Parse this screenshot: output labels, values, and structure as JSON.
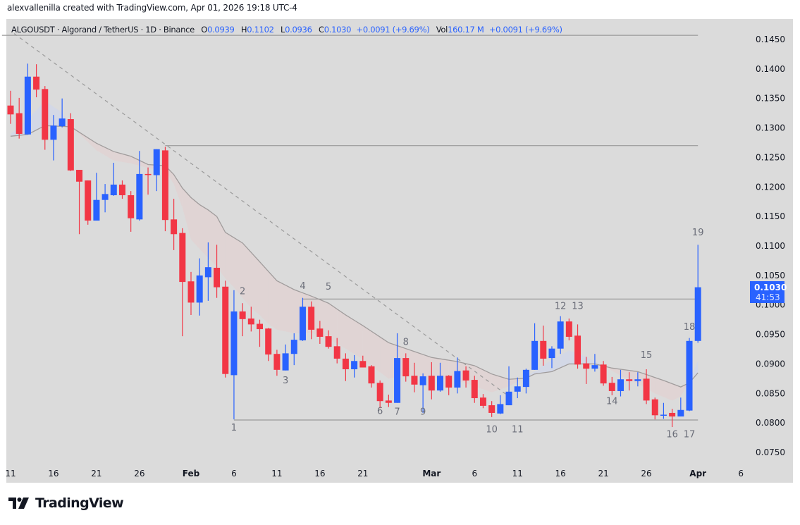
{
  "header": {
    "credit": "alexvallenilla created with TradingView.com, Apr 01, 2026 19:18 UTC-4"
  },
  "legend": {
    "symbol": "ALGOUSDT · Algorand / TetherUS · 1D · Binance",
    "open_label": "O",
    "open": "0.0939",
    "high_label": "H",
    "high": "0.1102",
    "low_label": "L",
    "low": "0.0936",
    "close_label": "C",
    "close": "0.1030",
    "change": "+0.0091 (+9.69%)",
    "vol_label": "Vol",
    "vol": "160.17 M",
    "vol_change": "+0.0091 (+9.69%)"
  },
  "price_tag": {
    "price": "0.1030",
    "countdown": "41:53",
    "color": "#2962ff"
  },
  "footer": {
    "logo": "TradingView"
  },
  "colors": {
    "up": "#2962ff",
    "down": "#f23645",
    "background": "#dbdbdb",
    "ma_line": "#a09c9c",
    "band_bear": "#e0d4d4",
    "band_bull": "#d3d8e6"
  },
  "chart_data": {
    "type": "candlestick",
    "title": "ALGOUSDT · Algorand / TetherUS · 1D · Binance",
    "ylim": [
      0.0725,
      0.1465
    ],
    "y_ticks": [
      "0.1450",
      "0.1400",
      "0.1350",
      "0.1300",
      "0.1250",
      "0.1200",
      "0.1150",
      "0.1100",
      "0.1050",
      "0.1000",
      "0.0950",
      "0.0900",
      "0.0850",
      "0.0800",
      "0.0750"
    ],
    "x_ticks": [
      {
        "label": "11",
        "date": "2026-01-11"
      },
      {
        "label": "16",
        "date": "2026-01-16"
      },
      {
        "label": "21",
        "date": "2026-01-21"
      },
      {
        "label": "26",
        "date": "2026-01-26"
      },
      {
        "label": "Feb",
        "date": "2026-02-01",
        "month": true
      },
      {
        "label": "6",
        "date": "2026-02-06"
      },
      {
        "label": "11",
        "date": "2026-02-11"
      },
      {
        "label": "16",
        "date": "2026-02-16"
      },
      {
        "label": "21",
        "date": "2026-02-21"
      },
      {
        "label": "Mar",
        "date": "2026-03-01",
        "month": true
      },
      {
        "label": "6",
        "date": "2026-03-06"
      },
      {
        "label": "11",
        "date": "2026-03-11"
      },
      {
        "label": "16",
        "date": "2026-03-16"
      },
      {
        "label": "21",
        "date": "2026-03-21"
      },
      {
        "label": "26",
        "date": "2026-03-26"
      },
      {
        "label": "Apr",
        "date": "2026-04-01",
        "month": true
      },
      {
        "label": "6",
        "date": "2026-04-06"
      }
    ],
    "columns": [
      "date",
      "open",
      "high",
      "low",
      "close"
    ],
    "candles": [
      [
        "2026-01-11",
        0.1338,
        0.1363,
        0.1307,
        0.1323
      ],
      [
        "2026-01-12",
        0.1325,
        0.1351,
        0.1282,
        0.129
      ],
      [
        "2026-01-13",
        0.1289,
        0.1409,
        0.1289,
        0.1387
      ],
      [
        "2026-01-14",
        0.1387,
        0.1408,
        0.1352,
        0.1365
      ],
      [
        "2026-01-15",
        0.1366,
        0.1371,
        0.1263,
        0.128
      ],
      [
        "2026-01-16",
        0.128,
        0.1322,
        0.1245,
        0.1304
      ],
      [
        "2026-01-17",
        0.1303,
        0.135,
        0.1301,
        0.1316
      ],
      [
        "2026-01-18",
        0.1315,
        0.1325,
        0.1227,
        0.1228
      ],
      [
        "2026-01-19",
        0.1229,
        0.1229,
        0.112,
        0.1209
      ],
      [
        "2026-01-20",
        0.1211,
        0.1211,
        0.1136,
        0.1143
      ],
      [
        "2026-01-21",
        0.1143,
        0.1224,
        0.1143,
        0.1178
      ],
      [
        "2026-01-22",
        0.1178,
        0.1205,
        0.1157,
        0.1188
      ],
      [
        "2026-01-23",
        0.1186,
        0.1241,
        0.1185,
        0.1204
      ],
      [
        "2026-01-24",
        0.1204,
        0.1211,
        0.118,
        0.1186
      ],
      [
        "2026-01-25",
        0.1186,
        0.1193,
        0.1124,
        0.1147
      ],
      [
        "2026-01-26",
        0.1145,
        0.1261,
        0.1143,
        0.1222
      ],
      [
        "2026-01-27",
        0.1222,
        0.1233,
        0.1187,
        0.1221
      ],
      [
        "2026-01-28",
        0.122,
        0.1264,
        0.1193,
        0.1264
      ],
      [
        "2026-01-29",
        0.1262,
        0.1268,
        0.1125,
        0.1144
      ],
      [
        "2026-01-30",
        0.1145,
        0.118,
        0.1093,
        0.112
      ],
      [
        "2026-01-31",
        0.1122,
        0.113,
        0.0947,
        0.1039
      ],
      [
        "2026-02-01",
        0.104,
        0.1056,
        0.0983,
        0.1004
      ],
      [
        "2026-02-02",
        0.1004,
        0.1079,
        0.0982,
        0.105
      ],
      [
        "2026-02-03",
        0.1047,
        0.1106,
        0.1007,
        0.1064
      ],
      [
        "2026-02-04",
        0.1063,
        0.1102,
        0.1012,
        0.103
      ],
      [
        "2026-02-05",
        0.1031,
        0.1041,
        0.0877,
        0.0883
      ],
      [
        "2026-02-06",
        0.0881,
        0.1025,
        0.0806,
        0.0989
      ],
      [
        "2026-02-07",
        0.0989,
        0.1003,
        0.0947,
        0.0976
      ],
      [
        "2026-02-08",
        0.0977,
        0.0997,
        0.0955,
        0.0967
      ],
      [
        "2026-02-09",
        0.0968,
        0.0975,
        0.0929,
        0.0959
      ],
      [
        "2026-02-10",
        0.096,
        0.0961,
        0.0905,
        0.0916
      ],
      [
        "2026-02-11",
        0.0917,
        0.0924,
        0.088,
        0.089
      ],
      [
        "2026-02-12",
        0.0889,
        0.0933,
        0.0889,
        0.0918
      ],
      [
        "2026-02-13",
        0.0917,
        0.0952,
        0.0898,
        0.0941
      ],
      [
        "2026-02-14",
        0.094,
        0.1012,
        0.0939,
        0.0997
      ],
      [
        "2026-02-15",
        0.0997,
        0.1006,
        0.0942,
        0.0958
      ],
      [
        "2026-02-16",
        0.096,
        0.0973,
        0.0934,
        0.0946
      ],
      [
        "2026-02-17",
        0.0947,
        0.0957,
        0.0926,
        0.0929
      ],
      [
        "2026-02-18",
        0.093,
        0.0944,
        0.0901,
        0.0909
      ],
      [
        "2026-02-19",
        0.0909,
        0.0918,
        0.0871,
        0.0891
      ],
      [
        "2026-02-20",
        0.0891,
        0.0915,
        0.0877,
        0.0905
      ],
      [
        "2026-02-21",
        0.0905,
        0.0914,
        0.0894,
        0.0894
      ],
      [
        "2026-02-22",
        0.0896,
        0.0898,
        0.086,
        0.0867
      ],
      [
        "2026-02-23",
        0.0868,
        0.0872,
        0.0825,
        0.0837
      ],
      [
        "2026-02-24",
        0.0838,
        0.0848,
        0.0827,
        0.0834
      ],
      [
        "2026-02-25",
        0.0834,
        0.0952,
        0.0834,
        0.091
      ],
      [
        "2026-02-26",
        0.091,
        0.0918,
        0.087,
        0.0879
      ],
      [
        "2026-02-27",
        0.088,
        0.0902,
        0.0852,
        0.0865
      ],
      [
        "2026-02-28",
        0.0864,
        0.0884,
        0.0817,
        0.0879
      ],
      [
        "2026-03-01",
        0.088,
        0.0903,
        0.084,
        0.0855
      ],
      [
        "2026-03-02",
        0.0855,
        0.0902,
        0.0853,
        0.088
      ],
      [
        "2026-03-03",
        0.088,
        0.0881,
        0.0847,
        0.086
      ],
      [
        "2026-03-04",
        0.086,
        0.0911,
        0.085,
        0.0888
      ],
      [
        "2026-03-05",
        0.0889,
        0.0896,
        0.086,
        0.0872
      ],
      [
        "2026-03-06",
        0.0873,
        0.088,
        0.0834,
        0.0842
      ],
      [
        "2026-03-07",
        0.0843,
        0.0849,
        0.0825,
        0.0829
      ],
      [
        "2026-03-08",
        0.083,
        0.0837,
        0.081,
        0.0817
      ],
      [
        "2026-03-09",
        0.0816,
        0.0847,
        0.0815,
        0.0832
      ],
      [
        "2026-03-10",
        0.083,
        0.0896,
        0.083,
        0.0853
      ],
      [
        "2026-03-11",
        0.0853,
        0.0877,
        0.0842,
        0.0862
      ],
      [
        "2026-03-12",
        0.0861,
        0.0892,
        0.085,
        0.089
      ],
      [
        "2026-03-13",
        0.089,
        0.0969,
        0.089,
        0.0939
      ],
      [
        "2026-03-14",
        0.0939,
        0.0965,
        0.0897,
        0.0909
      ],
      [
        "2026-03-15",
        0.091,
        0.093,
        0.0893,
        0.0926
      ],
      [
        "2026-03-16",
        0.0926,
        0.0981,
        0.0917,
        0.0972
      ],
      [
        "2026-03-17",
        0.0972,
        0.0977,
        0.094,
        0.0946
      ],
      [
        "2026-03-18",
        0.0948,
        0.0967,
        0.0892,
        0.0899
      ],
      [
        "2026-03-19",
        0.0901,
        0.0912,
        0.0866,
        0.0892
      ],
      [
        "2026-03-20",
        0.0892,
        0.0917,
        0.0887,
        0.0898
      ],
      [
        "2026-03-21",
        0.0899,
        0.0905,
        0.0863,
        0.0867
      ],
      [
        "2026-03-22",
        0.0868,
        0.0878,
        0.0847,
        0.0854
      ],
      [
        "2026-03-23",
        0.0854,
        0.089,
        0.0845,
        0.0874
      ],
      [
        "2026-03-24",
        0.0874,
        0.0886,
        0.0855,
        0.0871
      ],
      [
        "2026-03-25",
        0.0871,
        0.0886,
        0.0862,
        0.0874
      ],
      [
        "2026-03-26",
        0.0875,
        0.0891,
        0.0832,
        0.0838
      ],
      [
        "2026-03-27",
        0.084,
        0.0843,
        0.0806,
        0.0813
      ],
      [
        "2026-03-28",
        0.0813,
        0.0834,
        0.0807,
        0.0814
      ],
      [
        "2026-03-29",
        0.0817,
        0.0824,
        0.0793,
        0.0811
      ],
      [
        "2026-03-30",
        0.0811,
        0.0843,
        0.0811,
        0.0822
      ],
      [
        "2026-03-31",
        0.0821,
        0.0944,
        0.082,
        0.0939
      ],
      [
        "2026-04-01",
        0.0939,
        0.1102,
        0.0936,
        0.103
      ]
    ],
    "moving_average": [
      [
        "2026-01-11",
        0.1286
      ],
      [
        "2026-01-13",
        0.1289
      ],
      [
        "2026-01-15",
        0.1304
      ],
      [
        "2026-01-18",
        0.1302
      ],
      [
        "2026-01-21",
        0.1274
      ],
      [
        "2026-01-23",
        0.126
      ],
      [
        "2026-01-25",
        0.1252
      ],
      [
        "2026-01-27",
        0.1238
      ],
      [
        "2026-01-29",
        0.1236
      ],
      [
        "2026-01-30",
        0.1221
      ],
      [
        "2026-01-31",
        0.1198
      ],
      [
        "2026-02-01",
        0.1182
      ],
      [
        "2026-02-02",
        0.117
      ],
      [
        "2026-02-03",
        0.1161
      ],
      [
        "2026-02-04",
        0.115
      ],
      [
        "2026-02-05",
        0.1123
      ],
      [
        "2026-02-07",
        0.1105
      ],
      [
        "2026-02-09",
        0.1073
      ],
      [
        "2026-02-11",
        0.1041
      ],
      [
        "2026-02-13",
        0.1026
      ],
      [
        "2026-02-15",
        0.1015
      ],
      [
        "2026-02-17",
        0.1003
      ],
      [
        "2026-02-19",
        0.0983
      ],
      [
        "2026-02-21",
        0.0965
      ],
      [
        "2026-02-24",
        0.0936
      ],
      [
        "2026-02-27",
        0.0921
      ],
      [
        "2026-03-01",
        0.0911
      ],
      [
        "2026-03-04",
        0.0904
      ],
      [
        "2026-03-06",
        0.0897
      ],
      [
        "2026-03-08",
        0.0883
      ],
      [
        "2026-03-10",
        0.0874
      ],
      [
        "2026-03-12",
        0.0876
      ],
      [
        "2026-03-13",
        0.0883
      ],
      [
        "2026-03-15",
        0.0887
      ],
      [
        "2026-03-17",
        0.09
      ],
      [
        "2026-03-20",
        0.09
      ],
      [
        "2026-03-22",
        0.0893
      ],
      [
        "2026-03-25",
        0.0887
      ],
      [
        "2026-03-28",
        0.0872
      ],
      [
        "2026-03-30",
        0.0861
      ],
      [
        "2026-03-31",
        0.0868
      ],
      [
        "2026-04-01",
        0.0885
      ]
    ],
    "band_edge": [
      [
        "2026-01-11",
        0.129
      ],
      [
        "2026-01-13",
        0.1314
      ],
      [
        "2026-01-15",
        0.1346
      ],
      [
        "2026-01-17",
        0.1326
      ],
      [
        "2026-01-18",
        0.1302
      ],
      [
        "2026-01-19",
        0.129
      ],
      [
        "2026-01-21",
        0.1262
      ],
      [
        "2026-01-23",
        0.1245
      ],
      [
        "2026-01-25",
        0.124
      ],
      [
        "2026-01-27",
        0.1232
      ],
      [
        "2026-01-29",
        0.1228
      ],
      [
        "2026-01-30",
        0.1205
      ],
      [
        "2026-01-31",
        0.1165
      ],
      [
        "2026-02-01",
        0.1111
      ],
      [
        "2026-02-02",
        0.1095
      ],
      [
        "2026-02-03",
        0.108
      ],
      [
        "2026-02-04",
        0.1065
      ],
      [
        "2026-02-05",
        0.1045
      ],
      [
        "2026-02-06",
        0.103
      ],
      [
        "2026-02-07",
        0.1012
      ],
      [
        "2026-02-08",
        0.0995
      ],
      [
        "2026-02-09",
        0.0983
      ],
      [
        "2026-02-10",
        0.0968
      ],
      [
        "2026-02-11",
        0.0958
      ],
      [
        "2026-02-13",
        0.0952
      ],
      [
        "2026-02-15",
        0.0953
      ],
      [
        "2026-02-18",
        0.0935
      ],
      [
        "2026-02-21",
        0.0908
      ],
      [
        "2026-02-24",
        0.0875
      ],
      [
        "2026-02-26",
        0.0882
      ],
      [
        "2026-03-01",
        0.0878
      ],
      [
        "2026-03-04",
        0.0872
      ],
      [
        "2026-03-08",
        0.0852
      ],
      [
        "2026-03-10",
        0.0862
      ],
      [
        "2026-03-12",
        0.0878
      ],
      [
        "2026-03-14",
        0.0898
      ],
      [
        "2026-03-17",
        0.0923
      ],
      [
        "2026-03-19",
        0.0912
      ],
      [
        "2026-03-21",
        0.0897
      ],
      [
        "2026-03-23",
        0.088
      ],
      [
        "2026-03-25",
        0.0867
      ],
      [
        "2026-03-27",
        0.085
      ],
      [
        "2026-03-29",
        0.0838
      ],
      [
        "2026-03-30",
        0.0845
      ],
      [
        "2026-03-31",
        0.0872
      ],
      [
        "2026-04-01",
        0.0905
      ]
    ],
    "horizontal_lines": [
      {
        "price": 0.1457,
        "from": "2026-01-10",
        "to": "2026-04-01"
      },
      {
        "price": 0.127,
        "from": "2026-01-29",
        "to": "2026-04-01"
      },
      {
        "price": 0.101,
        "from": "2026-02-14",
        "to": "2026-04-01"
      },
      {
        "price": 0.0805,
        "from": "2026-02-06",
        "to": "2026-04-01"
      }
    ],
    "trend_line": {
      "from": [
        "2026-01-11",
        0.146
      ],
      "to": [
        "2026-03-10",
        0.0845
      ],
      "style": "dashed"
    },
    "wave_labels": [
      {
        "text": "1",
        "date": "2026-02-06",
        "price": 0.0787
      },
      {
        "text": "2",
        "date": "2026-02-07",
        "price": 0.1018
      },
      {
        "text": "3",
        "date": "2026-02-12",
        "price": 0.0867
      },
      {
        "text": "4",
        "date": "2026-02-14",
        "price": 0.1027
      },
      {
        "text": "5",
        "date": "2026-02-17",
        "price": 0.1026
      },
      {
        "text": "6",
        "date": "2026-02-23",
        "price": 0.0815
      },
      {
        "text": "7",
        "date": "2026-02-25",
        "price": 0.0814
      },
      {
        "text": "8",
        "date": "2026-02-26",
        "price": 0.0932
      },
      {
        "text": "9",
        "date": "2026-02-28",
        "price": 0.0814
      },
      {
        "text": "10",
        "date": "2026-03-08",
        "price": 0.0784
      },
      {
        "text": "11",
        "date": "2026-03-11",
        "price": 0.0784
      },
      {
        "text": "12",
        "date": "2026-03-16",
        "price": 0.0993
      },
      {
        "text": "13",
        "date": "2026-03-18",
        "price": 0.0993
      },
      {
        "text": "14",
        "date": "2026-03-22",
        "price": 0.0832
      },
      {
        "text": "15",
        "date": "2026-03-26",
        "price": 0.091
      },
      {
        "text": "16",
        "date": "2026-03-29",
        "price": 0.0776
      },
      {
        "text": "17",
        "date": "2026-03-31",
        "price": 0.0776
      },
      {
        "text": "18",
        "date": "2026-03-31",
        "price": 0.0958
      },
      {
        "text": "19",
        "date": "2026-04-01",
        "price": 0.1118
      }
    ]
  }
}
